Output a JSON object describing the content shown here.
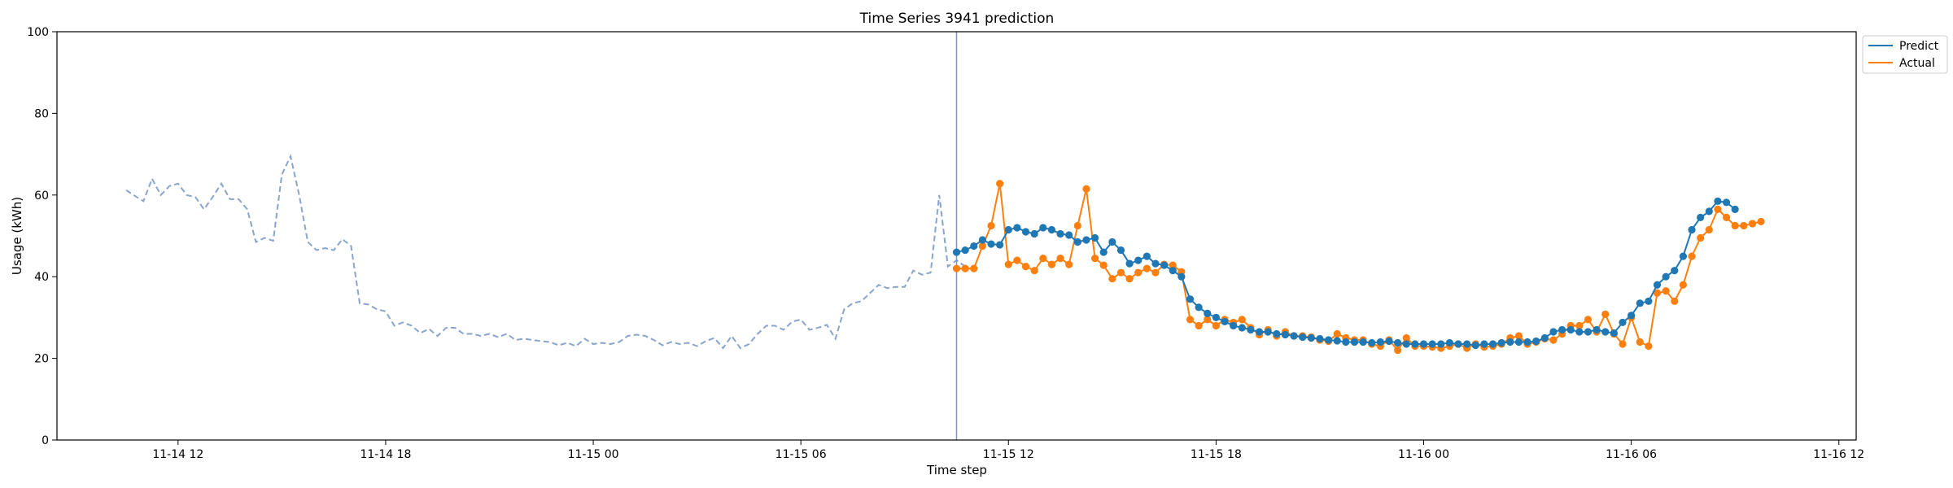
{
  "chart_data": {
    "type": "line",
    "title": "Time Series 3941 prediction",
    "xlabel": "Time step",
    "ylabel": "Usage (kWh)",
    "ylim": [
      0,
      100
    ],
    "xlim": [
      "2023-11-14 08:30",
      "2023-11-16 12:30"
    ],
    "y_ticks": [
      0,
      20,
      40,
      60,
      80,
      100
    ],
    "x_ticks": [
      {
        "t": "2023-11-14 12:00",
        "label": "11-14 12"
      },
      {
        "t": "2023-11-14 18:00",
        "label": "11-14 18"
      },
      {
        "t": "2023-11-15 00:00",
        "label": "11-15 00"
      },
      {
        "t": "2023-11-15 06:00",
        "label": "11-15 06"
      },
      {
        "t": "2023-11-15 12:00",
        "label": "11-15 12"
      },
      {
        "t": "2023-11-15 18:00",
        "label": "11-15 18"
      },
      {
        "t": "2023-11-16 00:00",
        "label": "11-16 00"
      },
      {
        "t": "2023-11-16 06:00",
        "label": "11-16 06"
      },
      {
        "t": "2023-11-16 12:00",
        "label": "11-16 12"
      }
    ],
    "grid": false,
    "legend": "top-right",
    "split_marker": "2023-11-15 10:30",
    "colors": {
      "history": "#8aa5cc",
      "predict": "#1f77b4",
      "actual": "#ff7f0e",
      "split": "#7b93c6"
    },
    "history": {
      "start": "2023-11-14 10:30",
      "step_minutes": 15,
      "values": [
        61.2,
        59.8,
        58.5,
        64.0,
        60.0,
        62.2,
        62.8,
        60.0,
        59.5,
        56.5,
        59.5,
        62.8,
        59.0,
        59.0,
        56.5,
        48.5,
        49.5,
        48.8,
        65.0,
        69.5,
        60.0,
        48.5,
        46.5,
        47.0,
        46.5,
        49.2,
        47.5,
        33.5,
        33.2,
        32.0,
        31.5,
        28.0,
        28.8,
        28.0,
        26.2,
        27.2,
        25.5,
        27.5,
        27.5,
        26.0,
        26.0,
        25.5,
        26.0,
        25.2,
        26.0,
        24.5,
        24.8,
        24.5,
        24.2,
        24.0,
        23.2,
        23.8,
        23.0,
        24.8,
        23.5,
        23.8,
        23.5,
        24.0,
        25.5,
        25.8,
        25.5,
        24.5,
        23.2,
        24.0,
        23.5,
        23.8,
        23.0,
        24.2,
        25.0,
        22.5,
        25.5,
        22.5,
        23.5,
        26.0,
        28.0,
        28.0,
        27.0,
        29.0,
        29.5,
        27.0,
        27.5,
        28.2,
        24.8,
        32.0,
        33.5,
        34.0,
        36.0,
        38.0,
        37.2,
        37.5,
        37.5,
        41.5,
        40.5,
        41.0,
        60.0,
        42.5,
        44.0,
        42.5
      ]
    },
    "series": [
      {
        "name": "Predict",
        "start": "2023-11-15 10:30",
        "step_minutes": 15,
        "values": [
          46.0,
          46.5,
          47.5,
          49.0,
          48.0,
          47.8,
          51.5,
          52.0,
          51.0,
          50.5,
          52.0,
          51.5,
          50.5,
          50.2,
          48.5,
          49.0,
          49.5,
          46.0,
          48.5,
          46.5,
          43.2,
          44.0,
          45.0,
          43.2,
          42.8,
          41.5,
          40.0,
          34.5,
          32.5,
          31.0,
          30.0,
          29.0,
          28.0,
          27.5,
          27.0,
          26.5,
          26.5,
          26.0,
          25.8,
          25.5,
          25.2,
          25.0,
          24.8,
          24.5,
          24.3,
          24.0,
          24.0,
          24.0,
          23.8,
          24.0,
          24.2,
          23.8,
          23.5,
          23.5,
          23.5,
          23.5,
          23.5,
          23.8,
          23.5,
          23.5,
          23.2,
          23.5,
          23.5,
          23.8,
          24.0,
          24.0,
          24.0,
          24.2,
          25.0,
          26.5,
          27.0,
          27.0,
          26.5,
          26.5,
          27.0,
          26.5,
          26.2,
          28.8,
          30.5,
          33.5,
          34.0,
          38.0,
          40.0,
          41.5,
          45.0,
          51.5,
          54.5,
          56.0,
          58.5,
          58.2,
          56.5
        ]
      },
      {
        "name": "Actual",
        "start": "2023-11-15 10:30",
        "step_minutes": 15,
        "values": [
          42.0,
          42.0,
          42.0,
          47.5,
          52.5,
          62.8,
          43.0,
          44.0,
          42.5,
          41.5,
          44.5,
          43.0,
          44.5,
          43.0,
          52.5,
          61.5,
          44.5,
          42.8,
          39.5,
          41.0,
          39.5,
          41.0,
          42.0,
          41.0,
          43.0,
          42.8,
          41.2,
          29.5,
          28.0,
          29.5,
          28.0,
          29.5,
          28.8,
          29.5,
          27.5,
          25.8,
          27.0,
          25.5,
          26.5,
          25.5,
          25.5,
          25.2,
          24.5,
          24.2,
          26.0,
          25.0,
          24.5,
          24.5,
          23.5,
          23.0,
          24.5,
          22.0,
          25.0,
          23.0,
          23.0,
          22.8,
          22.5,
          23.0,
          23.5,
          22.5,
          23.5,
          22.8,
          23.0,
          23.5,
          25.0,
          25.5,
          23.5,
          24.0,
          24.8,
          24.5,
          26.0,
          28.0,
          28.0,
          29.5,
          26.5,
          30.8,
          26.0,
          23.5,
          30.0,
          24.0,
          23.0,
          36.0,
          36.5,
          34.0,
          38.0,
          45.0,
          49.5,
          51.5,
          56.5,
          54.5,
          52.5,
          52.5,
          53.0,
          53.5
        ]
      }
    ]
  }
}
